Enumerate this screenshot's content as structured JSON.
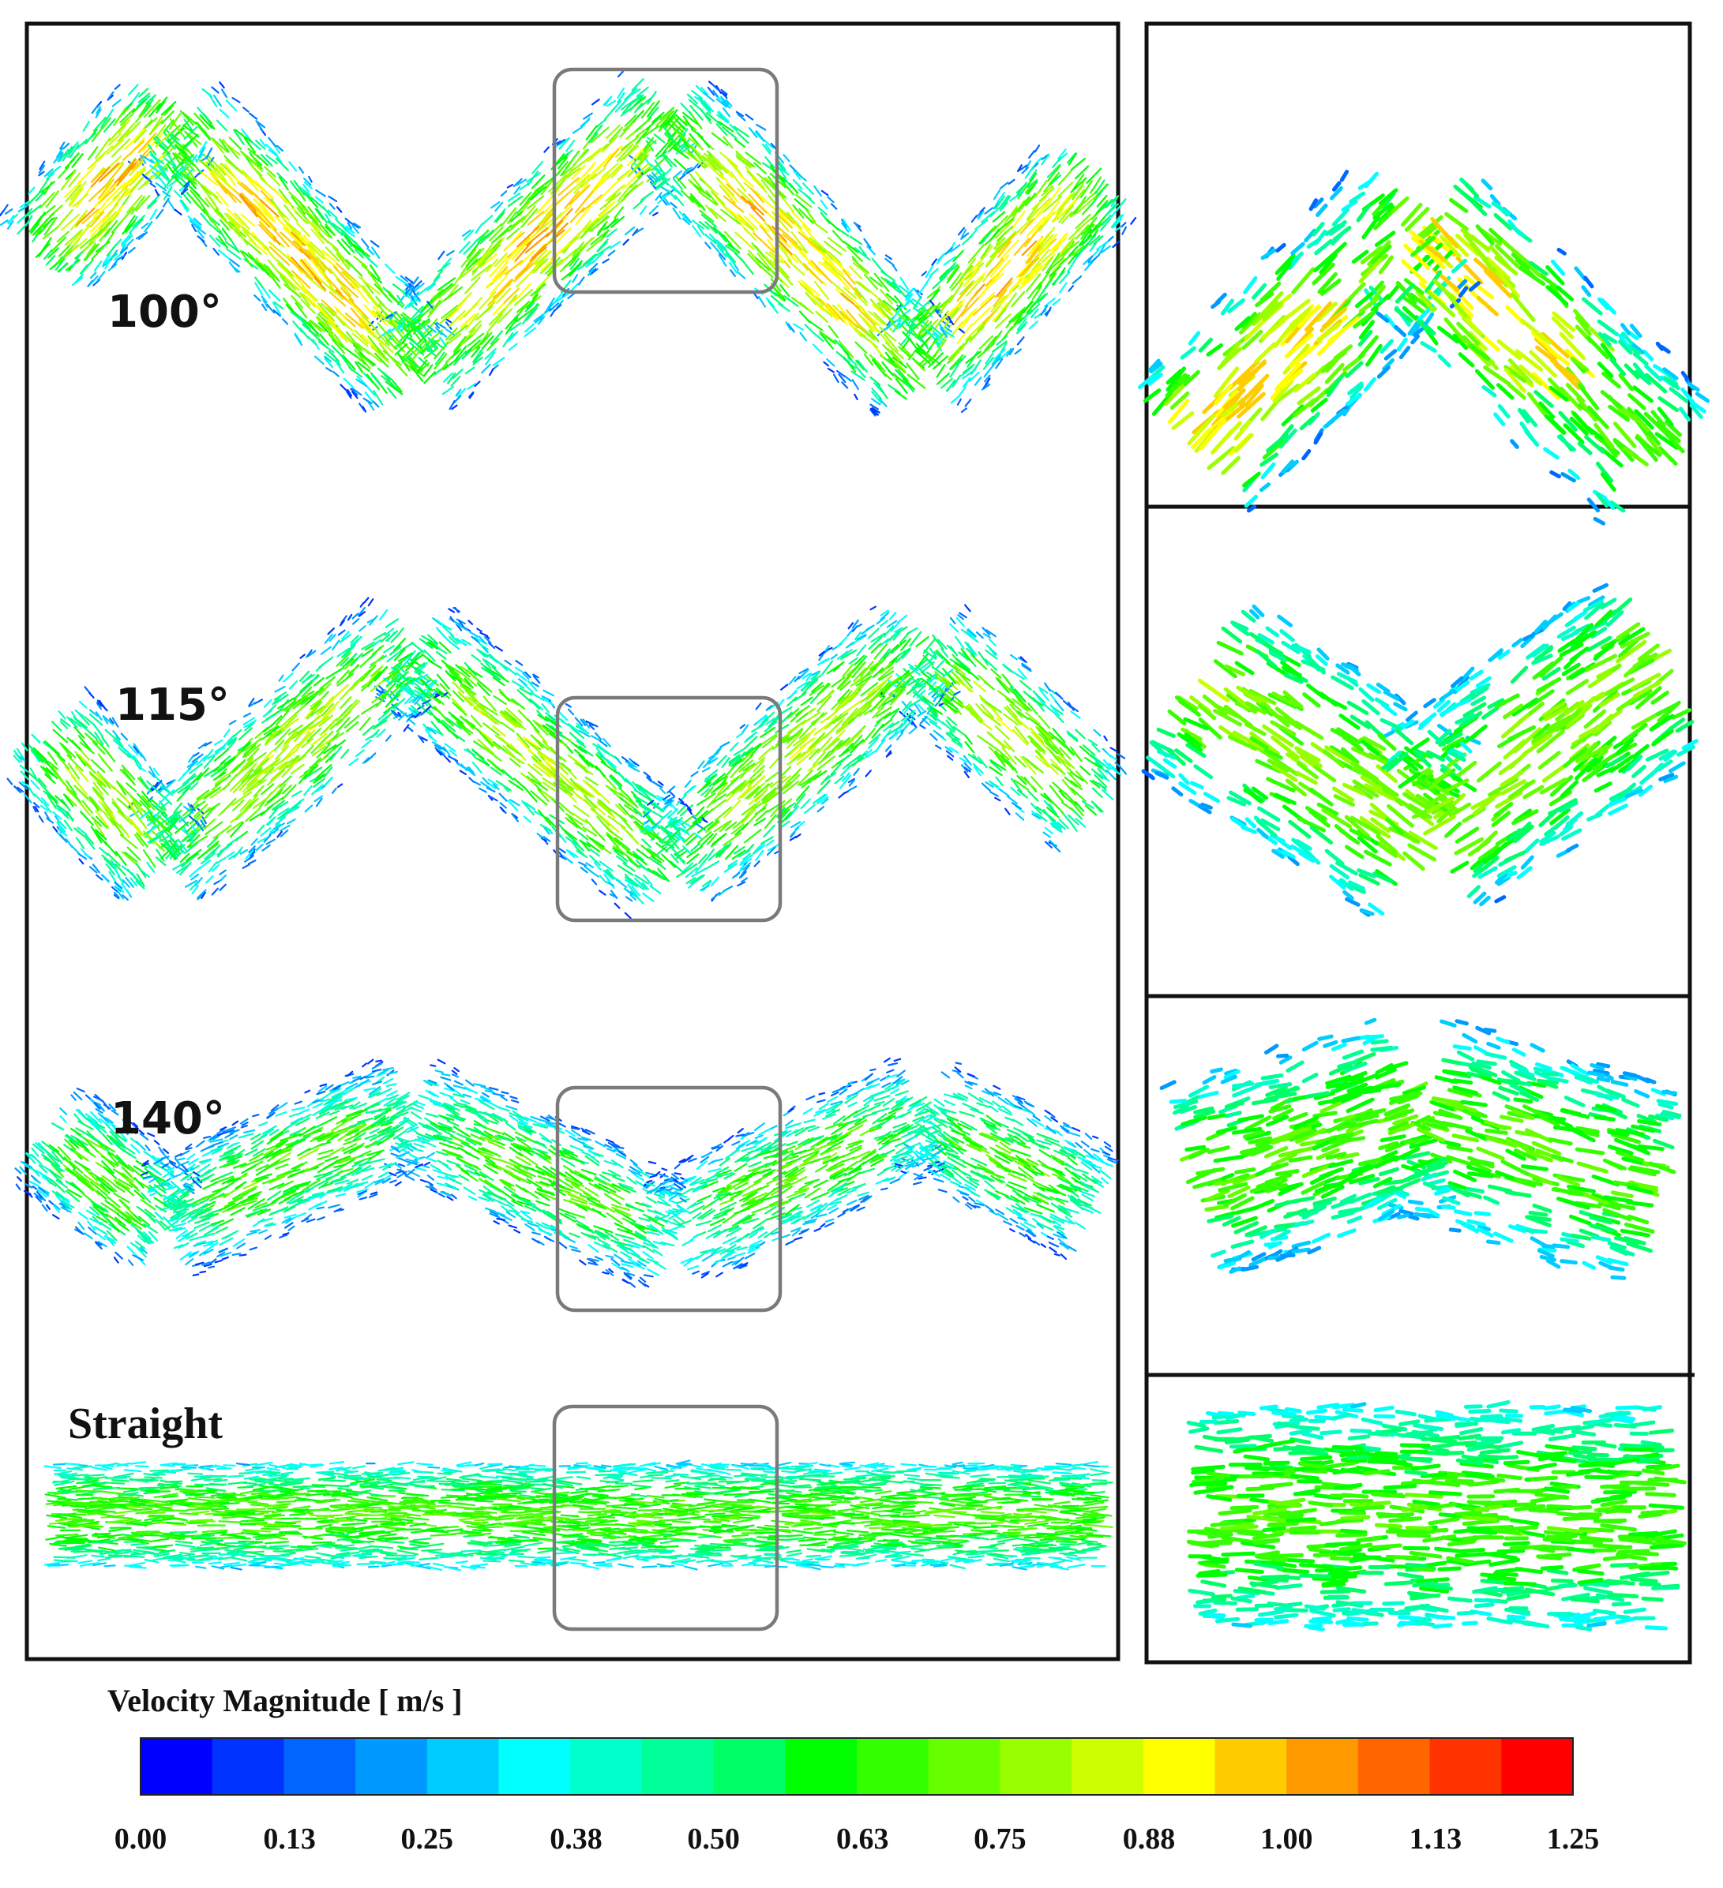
{
  "panels": [
    {
      "id": "100",
      "label": "100°",
      "angle_deg": 100
    },
    {
      "id": "115",
      "label": "115°",
      "angle_deg": 115
    },
    {
      "id": "140",
      "label": "140°",
      "angle_deg": 140
    },
    {
      "id": "straight",
      "label": "Straight",
      "angle_deg": 180
    }
  ],
  "colorbar": {
    "title": "Velocity Magnitude [ m/s ]",
    "min": 0.0,
    "max": 1.25,
    "ticks": [
      "0.00",
      "0.13",
      "0.25",
      "0.38",
      "0.50",
      "0.63",
      "0.75",
      "0.88",
      "1.00",
      "1.13",
      "1.25"
    ],
    "colors": [
      "#0000ff",
      "#0033ff",
      "#0066ff",
      "#0099ff",
      "#00ccff",
      "#00ffff",
      "#00ffcc",
      "#00ff99",
      "#00ff66",
      "#00ff00",
      "#33ff00",
      "#66ff00",
      "#99ff00",
      "#ccff00",
      "#ffff00",
      "#ffcc00",
      "#ff9900",
      "#ff6600",
      "#ff3300",
      "#ff0000"
    ]
  },
  "colors": {
    "frame": "#111111",
    "zoom_box": "#7a7a7a"
  }
}
